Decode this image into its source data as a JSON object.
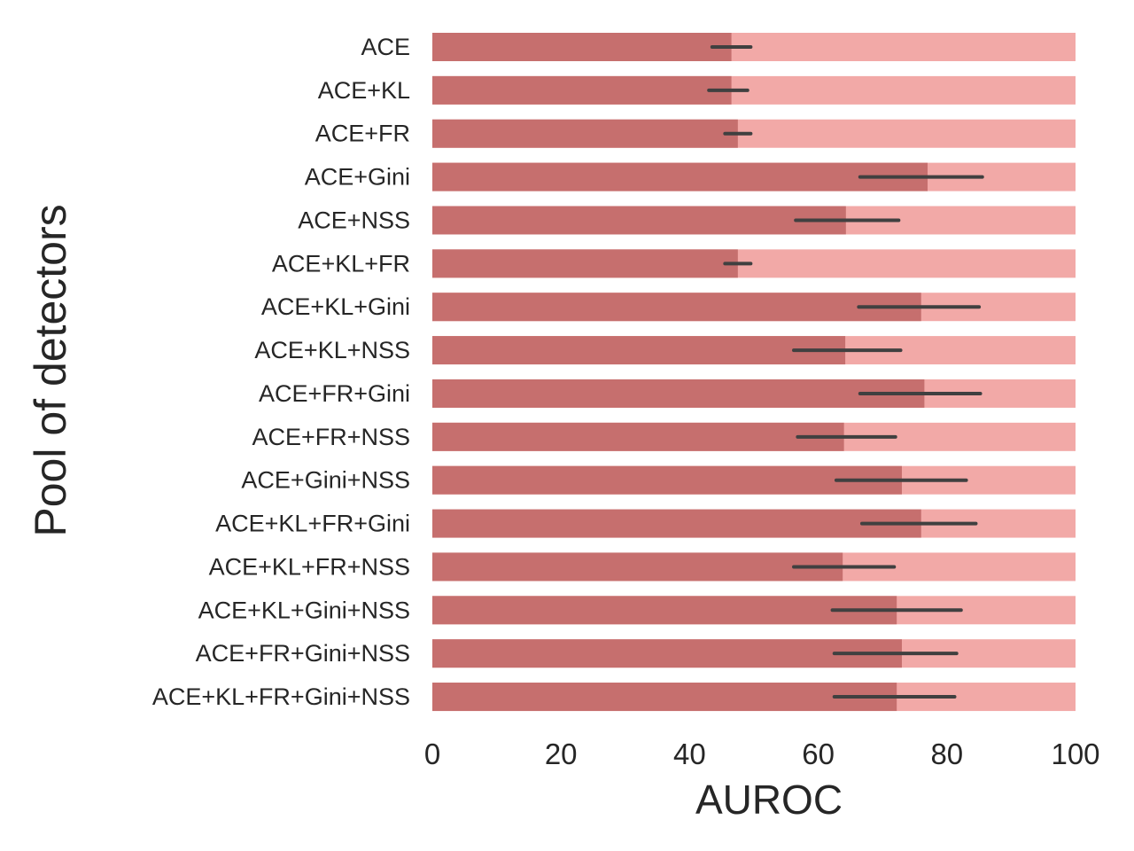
{
  "chart_data": {
    "type": "bar",
    "orientation": "horizontal",
    "xlabel": "AUROC",
    "ylabel": "Pool of detectors",
    "xlim": [
      0,
      100
    ],
    "xticks": [
      0,
      20,
      40,
      60,
      80,
      100
    ],
    "grid": false,
    "colors": {
      "bar": "#c66f6e",
      "background_bar": "#f2a9a7",
      "error_bar": "#404040",
      "text": "#262626"
    },
    "categories": [
      "ACE",
      "ACE+KL",
      "ACE+FR",
      "ACE+Gini",
      "ACE+NSS",
      "ACE+KL+FR",
      "ACE+KL+Gini",
      "ACE+KL+NSS",
      "ACE+FR+Gini",
      "ACE+FR+NSS",
      "ACE+Gini+NSS",
      "ACE+KL+FR+Gini",
      "ACE+KL+FR+NSS",
      "ACE+KL+Gini+NSS",
      "ACE+FR+Gini+NSS",
      "ACE+KL+FR+Gini+NSS"
    ],
    "values": [
      46.5,
      46.5,
      47.5,
      77.0,
      64.3,
      47.5,
      76.0,
      64.2,
      76.5,
      64.0,
      73.0,
      76.0,
      63.8,
      72.2,
      73.0,
      72.2
    ],
    "error_low": [
      43.5,
      43.0,
      45.5,
      66.5,
      56.5,
      45.5,
      66.3,
      56.2,
      66.5,
      56.8,
      62.8,
      66.8,
      56.2,
      62.2,
      62.5,
      62.5
    ],
    "error_high": [
      49.5,
      49.0,
      49.5,
      85.5,
      72.5,
      49.5,
      85.0,
      72.8,
      85.2,
      72.0,
      83.0,
      84.5,
      71.8,
      82.2,
      81.5,
      81.2
    ],
    "background_value": 100
  }
}
